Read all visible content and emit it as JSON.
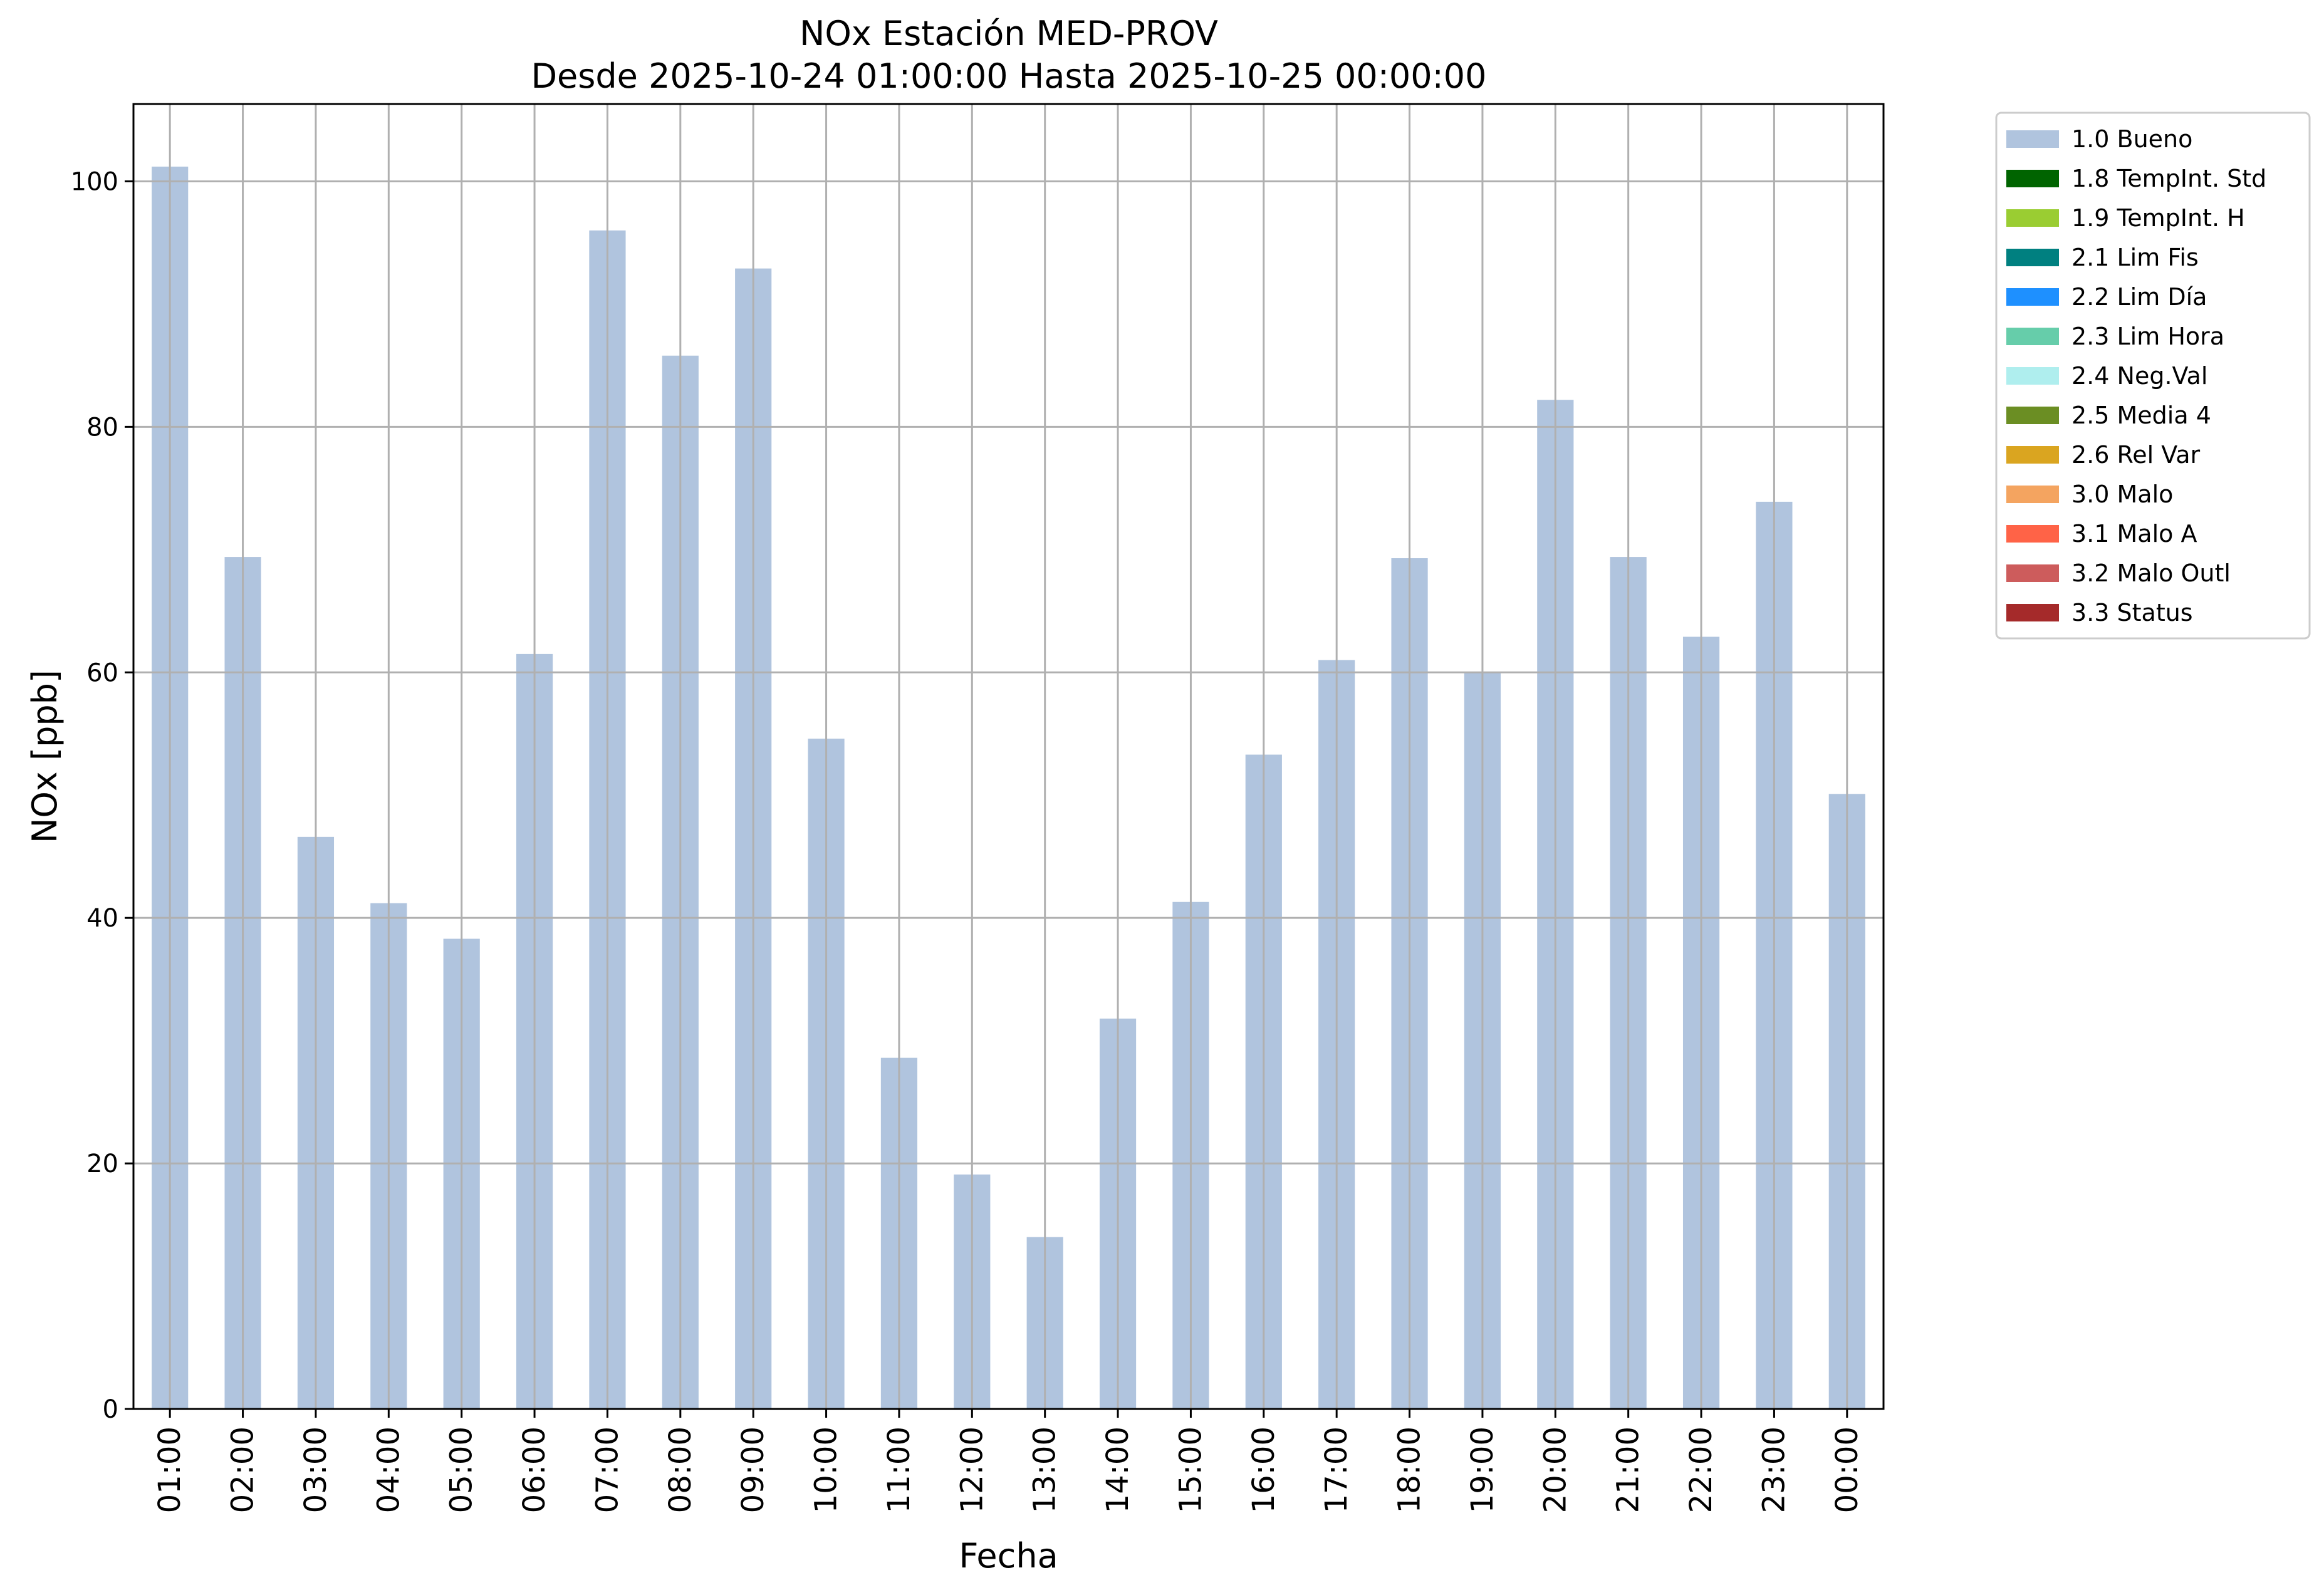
{
  "chart_data": {
    "type": "bar",
    "title": "NOx Estación MED-PROV",
    "subtitle": "Desde 2025-10-24 01:00:00 Hasta 2025-10-25 00:00:00",
    "xlabel": "Fecha",
    "ylabel": "NOx [ppb]",
    "ylim": [
      0,
      106.3
    ],
    "yticks": [
      0,
      20,
      40,
      60,
      80,
      100
    ],
    "grid": true,
    "legend_position": "outside top-right",
    "categories": [
      "01:00",
      "02:00",
      "03:00",
      "04:00",
      "05:00",
      "06:00",
      "07:00",
      "08:00",
      "09:00",
      "10:00",
      "11:00",
      "12:00",
      "13:00",
      "14:00",
      "15:00",
      "16:00",
      "17:00",
      "18:00",
      "19:00",
      "20:00",
      "21:00",
      "22:00",
      "23:00",
      "00:00"
    ],
    "series": [
      {
        "name": "1.0 Bueno",
        "color": "#b0c4de",
        "values": [
          101.2,
          69.4,
          46.6,
          41.2,
          38.3,
          61.5,
          96.0,
          85.8,
          92.9,
          54.6,
          28.6,
          19.1,
          14.0,
          31.8,
          41.3,
          53.3,
          61.0,
          69.3,
          60.0,
          82.2,
          69.4,
          62.9,
          73.9,
          50.1
        ]
      }
    ],
    "legend": [
      {
        "label": "1.0 Bueno",
        "color": "#b0c4de"
      },
      {
        "label": "1.8 TempInt. Std",
        "color": "#006400"
      },
      {
        "label": "1.9 TempInt. H",
        "color": "#9acd32"
      },
      {
        "label": "2.1 Lim Fis",
        "color": "#008080"
      },
      {
        "label": "2.2 Lim Día",
        "color": "#1e90ff"
      },
      {
        "label": "2.3 Lim Hora",
        "color": "#66cdaa"
      },
      {
        "label": "2.4 Neg.Val",
        "color": "#afeeee"
      },
      {
        "label": "2.5 Media 4",
        "color": "#6b8e23"
      },
      {
        "label": "2.6 Rel Var",
        "color": "#daa520"
      },
      {
        "label": "3.0 Malo",
        "color": "#f4a460"
      },
      {
        "label": "3.1 Malo A",
        "color": "#ff6347"
      },
      {
        "label": "3.2 Malo Outl",
        "color": "#cd5c5c"
      },
      {
        "label": "3.3 Status",
        "color": "#a52a2a"
      }
    ]
  }
}
